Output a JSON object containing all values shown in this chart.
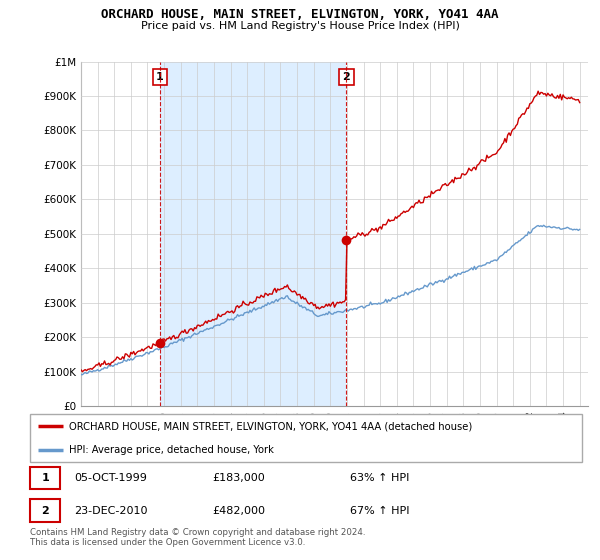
{
  "title": "ORCHARD HOUSE, MAIN STREET, ELVINGTON, YORK, YO41 4AA",
  "subtitle": "Price paid vs. HM Land Registry's House Price Index (HPI)",
  "ylabel_ticks": [
    "£0",
    "£100K",
    "£200K",
    "£300K",
    "£400K",
    "£500K",
    "£600K",
    "£700K",
    "£800K",
    "£900K",
    "£1M"
  ],
  "ytick_values": [
    0,
    100000,
    200000,
    300000,
    400000,
    500000,
    600000,
    700000,
    800000,
    900000,
    1000000
  ],
  "ylim": [
    0,
    1000000
  ],
  "xlim_start": 1995.0,
  "xlim_end": 2025.5,
  "xtick_years": [
    1995,
    1996,
    1997,
    1998,
    1999,
    2000,
    2001,
    2002,
    2003,
    2004,
    2005,
    2006,
    2007,
    2008,
    2009,
    2010,
    2011,
    2012,
    2013,
    2014,
    2015,
    2016,
    2017,
    2018,
    2019,
    2020,
    2021,
    2022,
    2023,
    2024,
    2025
  ],
  "purchase1_x": 1999.75,
  "purchase1_y": 183000,
  "purchase2_x": 2010.97,
  "purchase2_y": 482000,
  "vline1_x": 1999.75,
  "vline2_x": 2010.97,
  "red_line_color": "#cc0000",
  "blue_line_color": "#6699cc",
  "shade_color": "#ddeeff",
  "vline_color": "#cc0000",
  "grid_color": "#cccccc",
  "background_color": "#ffffff",
  "legend_line1": "ORCHARD HOUSE, MAIN STREET, ELVINGTON, YORK, YO41 4AA (detached house)",
  "legend_line2": "HPI: Average price, detached house, York",
  "annotation1_date": "05-OCT-1999",
  "annotation1_price": "£183,000",
  "annotation1_hpi": "63% ↑ HPI",
  "annotation2_date": "23-DEC-2010",
  "annotation2_price": "£482,000",
  "annotation2_hpi": "67% ↑ HPI",
  "footer": "Contains HM Land Registry data © Crown copyright and database right 2024.\nThis data is licensed under the Open Government Licence v3.0."
}
